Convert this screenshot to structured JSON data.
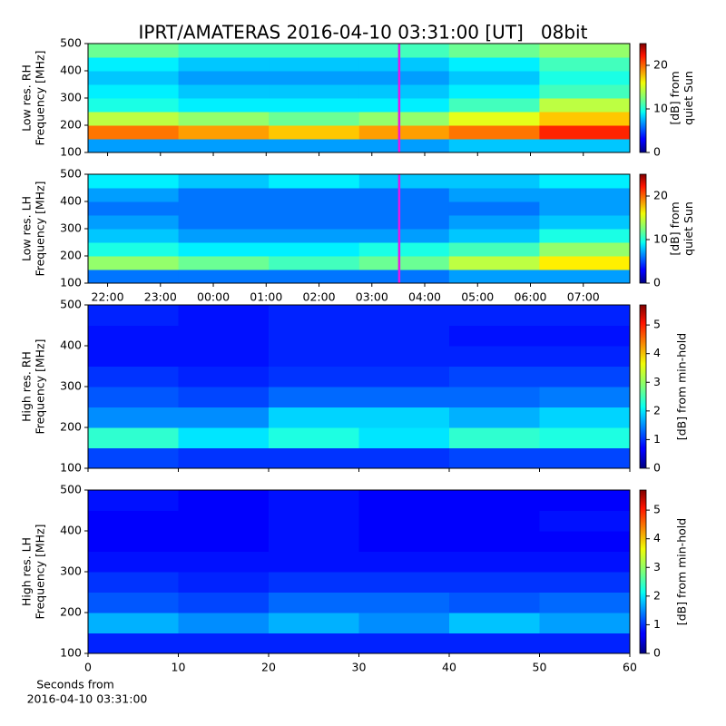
{
  "chart_data": [
    {
      "type": "heatmap",
      "title": "IPRT/AMATERAS 2016-04-10 03:31:00 [UT]   08bit",
      "ylabel": [
        "Low res. RH",
        "Frequency [MHz]"
      ],
      "xlim": [
        21.63,
        31.88
      ],
      "ylim": [
        100,
        500
      ],
      "yticks": [
        100,
        200,
        300,
        400,
        500
      ],
      "x_bins": [
        21.63,
        23.34,
        25.05,
        26.76,
        28.46,
        30.17,
        31.88
      ],
      "y_bins": [
        100,
        150,
        200,
        250,
        300,
        350,
        400,
        450,
        500
      ],
      "z": [
        [
          7,
          7,
          7,
          7,
          8,
          8
        ],
        [
          19,
          18,
          17,
          18,
          19,
          21
        ],
        [
          14,
          13,
          12,
          13,
          15,
          17
        ],
        [
          10,
          9,
          9,
          9,
          11,
          14
        ],
        [
          9,
          8,
          8,
          8,
          9,
          11
        ],
        [
          8,
          7,
          7,
          7,
          8,
          10
        ],
        [
          9,
          8,
          8,
          8,
          9,
          11
        ],
        [
          12,
          11,
          11,
          11,
          12,
          13
        ]
      ],
      "marker_x": 27.517,
      "marker_color": "#e619e6",
      "clim": [
        0,
        25
      ],
      "cticks": [
        0,
        10,
        20
      ],
      "colorbar_label": [
        "[dB] from",
        "quiet Sun"
      ]
    },
    {
      "type": "heatmap",
      "ylabel": [
        "Low res. LH",
        "Frequency [MHz]"
      ],
      "xlim": [
        21.63,
        31.88
      ],
      "ylim": [
        100,
        500
      ],
      "yticks": [
        100,
        200,
        300,
        400,
        500
      ],
      "xticks": [
        {
          "value": 22,
          "label": "22:00"
        },
        {
          "value": 23,
          "label": "23:00"
        },
        {
          "value": 24,
          "label": "00:00"
        },
        {
          "value": 25,
          "label": "01:00"
        },
        {
          "value": 26,
          "label": "02:00"
        },
        {
          "value": 27,
          "label": "03:00"
        },
        {
          "value": 28,
          "label": "04:00"
        },
        {
          "value": 29,
          "label": "05:00"
        },
        {
          "value": 30,
          "label": "06:00"
        },
        {
          "value": 31,
          "label": "07:00"
        }
      ],
      "x_bins": [
        21.63,
        23.34,
        25.05,
        26.76,
        28.46,
        30.17,
        31.88
      ],
      "y_bins": [
        100,
        150,
        200,
        250,
        300,
        350,
        400,
        450,
        500
      ],
      "z": [
        [
          6,
          6,
          6,
          6,
          7,
          7
        ],
        [
          13,
          12,
          11,
          12,
          14,
          16
        ],
        [
          10,
          9,
          9,
          10,
          11,
          13
        ],
        [
          8,
          7,
          7,
          7,
          8,
          10
        ],
        [
          7,
          6,
          6,
          6,
          7,
          8
        ],
        [
          6,
          6,
          6,
          6,
          6,
          7
        ],
        [
          7,
          6,
          6,
          6,
          7,
          7
        ],
        [
          9,
          8,
          9,
          8,
          8,
          9
        ]
      ],
      "marker_x": 27.517,
      "marker_color": "#e619e6",
      "clim": [
        0,
        25
      ],
      "cticks": [
        0,
        10,
        20
      ],
      "colorbar_label": [
        "[dB] from",
        "quiet Sun"
      ]
    },
    {
      "type": "heatmap",
      "ylabel": [
        "High res. RH",
        "Frequency [MHz]"
      ],
      "xlim": [
        0,
        60
      ],
      "ylim": [
        100,
        500
      ],
      "yticks": [
        100,
        200,
        300,
        400,
        500
      ],
      "x_bins": [
        0,
        10,
        20,
        30,
        40,
        50,
        60
      ],
      "y_bins": [
        100,
        150,
        200,
        250,
        300,
        350,
        400,
        450,
        500
      ],
      "z": [
        [
          1.1,
          1.0,
          1.0,
          1.0,
          1.1,
          1.1
        ],
        [
          2.4,
          2.0,
          2.3,
          2.0,
          2.4,
          2.3
        ],
        [
          1.5,
          1.5,
          1.9,
          1.9,
          1.7,
          1.9
        ],
        [
          1.2,
          1.1,
          1.3,
          1.3,
          1.3,
          1.4
        ],
        [
          1.0,
          0.9,
          1.0,
          1.0,
          1.1,
          1.1
        ],
        [
          0.8,
          0.8,
          0.9,
          0.9,
          0.9,
          0.9
        ],
        [
          0.8,
          0.8,
          0.9,
          0.9,
          0.8,
          0.8
        ],
        [
          0.9,
          0.8,
          0.9,
          0.9,
          0.9,
          0.9
        ]
      ],
      "clim": [
        0,
        5.7
      ],
      "cticks": [
        0,
        1,
        2,
        3,
        4,
        5
      ],
      "colorbar_label": [
        "[dB] from min-hold"
      ]
    },
    {
      "type": "heatmap",
      "ylabel": [
        "High res. LH",
        "Frequency [MHz]"
      ],
      "xlim": [
        0,
        60
      ],
      "ylim": [
        100,
        500
      ],
      "yticks": [
        100,
        200,
        300,
        400,
        500
      ],
      "xticks": [
        0,
        10,
        20,
        30,
        40,
        50,
        60
      ],
      "xlabel": [
        "Seconds from",
        "2016-04-10 03:31:00"
      ],
      "x_bins": [
        0,
        10,
        20,
        30,
        40,
        50,
        60
      ],
      "y_bins": [
        100,
        150,
        200,
        250,
        300,
        350,
        400,
        450,
        500
      ],
      "z": [
        [
          0.9,
          0.9,
          0.9,
          0.9,
          0.9,
          0.9
        ],
        [
          1.7,
          1.5,
          1.7,
          1.5,
          1.8,
          1.6
        ],
        [
          1.2,
          1.1,
          1.3,
          1.3,
          1.2,
          1.3
        ],
        [
          1.0,
          0.9,
          1.0,
          1.0,
          1.0,
          1.0
        ],
        [
          0.8,
          0.8,
          0.8,
          0.8,
          0.8,
          0.8
        ],
        [
          0.7,
          0.7,
          0.8,
          0.7,
          0.7,
          0.7
        ],
        [
          0.7,
          0.7,
          0.8,
          0.7,
          0.7,
          0.8
        ],
        [
          0.8,
          0.7,
          0.8,
          0.7,
          0.7,
          0.7
        ]
      ],
      "clim": [
        0,
        5.7
      ],
      "cticks": [
        0,
        1,
        2,
        3,
        4,
        5
      ],
      "colorbar_label": [
        "[dB] from min-hold"
      ]
    }
  ]
}
